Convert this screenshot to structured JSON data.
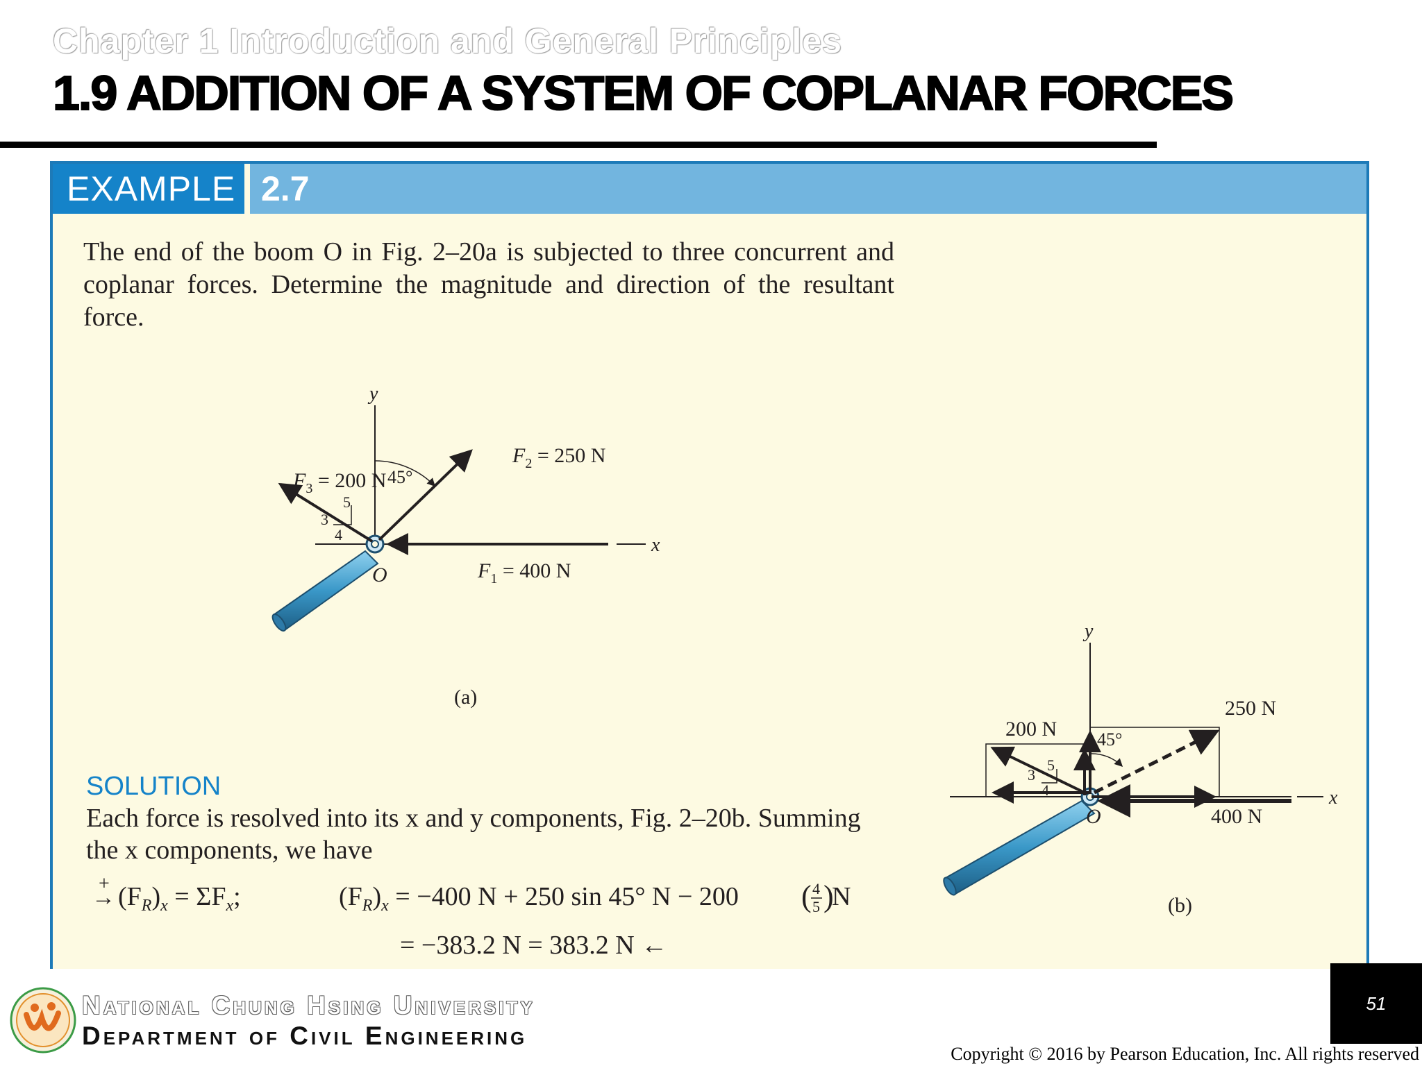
{
  "header": {
    "chapter": "Chapter 1 Introduction and General Principles",
    "title": "1.9 ADDITION OF A SYSTEM OF COPLANAR FORCES"
  },
  "example": {
    "label": "EXAMPLE",
    "number": "2.7",
    "problem_text": "The end of the boom O in Fig. 2–20a is subjected to three concurrent and coplanar forces. Determine the magnitude and direction of the resultant force."
  },
  "figure_a": {
    "y_label": "y",
    "x_label": "x",
    "origin_label": "O",
    "f2_label": "F",
    "f2_sub": "2",
    "f2_value": " = 250 N",
    "f3_label": "F",
    "f3_sub": "3",
    "f3_value": " = 200 N",
    "f1_label": "F",
    "f1_sub": "1",
    "f1_value": " = 400 N",
    "angle": "45°",
    "slope_hyp": "5",
    "slope_rise": "3",
    "slope_run": "4",
    "caption": "(a)"
  },
  "figure_b": {
    "y_label": "y",
    "x_label": "x",
    "origin_label": "O",
    "f2_value": "250 N",
    "f3_value": "200 N",
    "f1_value": "400 N",
    "angle": "45°",
    "slope_hyp": "5",
    "slope_rise": "3",
    "slope_run": "4",
    "caption": "(b)"
  },
  "solution": {
    "heading": "SOLUTION",
    "text": "Each force is resolved into its x and y components, Fig. 2–20b. Summing the x components, we have",
    "eq_arrow_plus": "+",
    "eq_arrow": "→",
    "eq_lhs": "(F",
    "eq_lhs_sub": "R",
    "eq_lhs_close": ")",
    "eq_lhs_sub2": "x",
    "eq_lhs_rest": " = ΣF",
    "eq_lhs_rest_sub": "x",
    "eq_lhs_semicolon": ";",
    "eq_rhs": " = −400 N + 250 sin 45° N − 200",
    "eq_frac_num": "4",
    "eq_frac_den": "5",
    "eq_rhs_end": " N",
    "eq_line2": "= −383.2 N = 383.2 N ←"
  },
  "footer": {
    "university": "National Chung Hsing University",
    "department": "Department of Civil Engineering",
    "page_number": "51",
    "copyright": "Copyright © 2016 by Pearson Education, Inc. All rights reserved"
  },
  "colors": {
    "accent": "#1583c9",
    "header_bar": "#72b5df",
    "card_bg": "#fdfae2",
    "boom": "#4aa3cf"
  }
}
